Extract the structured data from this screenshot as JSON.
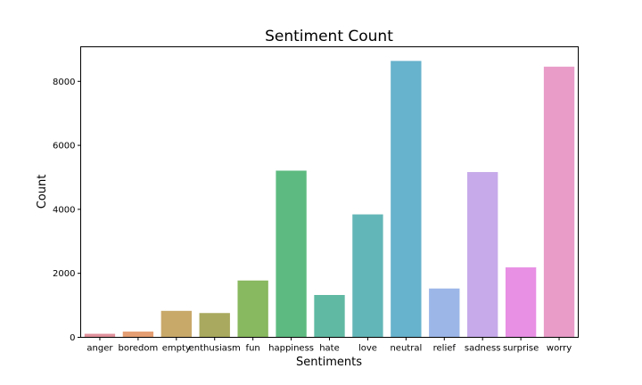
{
  "chart_data": {
    "type": "bar",
    "title": "Sentiment Count",
    "xlabel": "Sentiments",
    "ylabel": "Count",
    "categories": [
      "anger",
      "boredom",
      "empty",
      "enthusiasm",
      "fun",
      "happiness",
      "hate",
      "love",
      "neutral",
      "relief",
      "sadness",
      "surprise",
      "worry"
    ],
    "values": [
      110,
      179,
      827,
      759,
      1776,
      5209,
      1323,
      3842,
      8638,
      1526,
      5165,
      2187,
      8459
    ],
    "ylim": [
      0,
      9080
    ],
    "yticks": [
      0,
      2000,
      4000,
      6000,
      8000
    ],
    "grid": false,
    "colors": [
      "#e1919b",
      "#e49e72",
      "#c9a96a",
      "#a9a95f",
      "#88b85f",
      "#5dba80",
      "#60b9a3",
      "#63b6b7",
      "#67b2cc",
      "#9cb6e8",
      "#c6aaea",
      "#e890e4",
      "#e99cc8"
    ]
  }
}
